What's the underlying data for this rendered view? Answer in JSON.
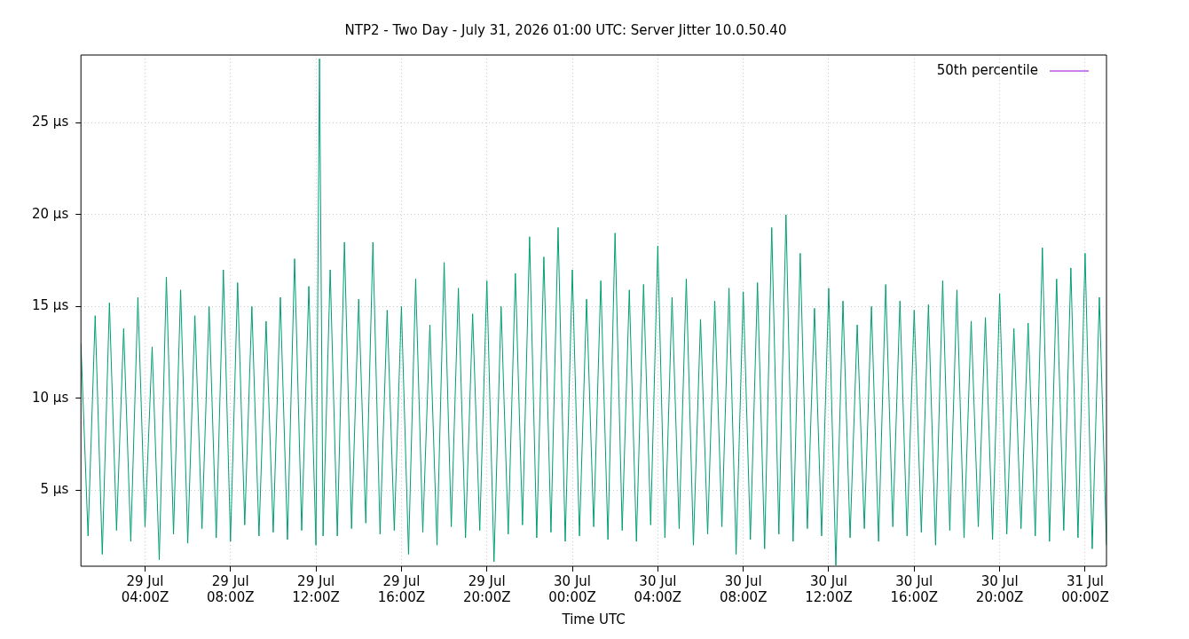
{
  "chart_data": {
    "type": "line",
    "title": "NTP2 - Two Day - July 31, 2026 01:00 UTC: Server Jitter 10.0.50.40",
    "xlabel": "Time UTC",
    "x": [
      "2026-07-29T01:00",
      "2026-07-29T01:20",
      "2026-07-29T01:40",
      "2026-07-29T02:00",
      "2026-07-29T02:20",
      "2026-07-29T02:40",
      "2026-07-29T03:00",
      "2026-07-29T03:20",
      "2026-07-29T03:40",
      "2026-07-29T04:00",
      "2026-07-29T04:20",
      "2026-07-29T04:40",
      "2026-07-29T05:00",
      "2026-07-29T05:20",
      "2026-07-29T05:40",
      "2026-07-29T06:00",
      "2026-07-29T06:20",
      "2026-07-29T06:40",
      "2026-07-29T07:00",
      "2026-07-29T07:20",
      "2026-07-29T07:40",
      "2026-07-29T08:00",
      "2026-07-29T08:20",
      "2026-07-29T08:40",
      "2026-07-29T09:00",
      "2026-07-29T09:20",
      "2026-07-29T09:40",
      "2026-07-29T10:00",
      "2026-07-29T10:20",
      "2026-07-29T10:40",
      "2026-07-29T11:00",
      "2026-07-29T11:20",
      "2026-07-29T11:40",
      "2026-07-29T12:00",
      "2026-07-29T12:10",
      "2026-07-29T12:20",
      "2026-07-29T12:40",
      "2026-07-29T13:00",
      "2026-07-29T13:20",
      "2026-07-29T13:40",
      "2026-07-29T14:00",
      "2026-07-29T14:20",
      "2026-07-29T14:40",
      "2026-07-29T15:00",
      "2026-07-29T15:20",
      "2026-07-29T15:40",
      "2026-07-29T16:00",
      "2026-07-29T16:20",
      "2026-07-29T16:40",
      "2026-07-29T17:00",
      "2026-07-29T17:20",
      "2026-07-29T17:40",
      "2026-07-29T18:00",
      "2026-07-29T18:20",
      "2026-07-29T18:40",
      "2026-07-29T19:00",
      "2026-07-29T19:20",
      "2026-07-29T19:40",
      "2026-07-29T20:00",
      "2026-07-29T20:20",
      "2026-07-29T20:40",
      "2026-07-29T21:00",
      "2026-07-29T21:20",
      "2026-07-29T21:40",
      "2026-07-29T22:00",
      "2026-07-29T22:20",
      "2026-07-29T22:40",
      "2026-07-29T23:00",
      "2026-07-29T23:20",
      "2026-07-29T23:40",
      "2026-07-30T00:00",
      "2026-07-30T00:20",
      "2026-07-30T00:40",
      "2026-07-30T01:00",
      "2026-07-30T01:20",
      "2026-07-30T01:40",
      "2026-07-30T02:00",
      "2026-07-30T02:20",
      "2026-07-30T02:40",
      "2026-07-30T03:00",
      "2026-07-30T03:20",
      "2026-07-30T03:40",
      "2026-07-30T04:00",
      "2026-07-30T04:20",
      "2026-07-30T04:40",
      "2026-07-30T05:00",
      "2026-07-30T05:20",
      "2026-07-30T05:40",
      "2026-07-30T06:00",
      "2026-07-30T06:20",
      "2026-07-30T06:40",
      "2026-07-30T07:00",
      "2026-07-30T07:20",
      "2026-07-30T07:40",
      "2026-07-30T08:00",
      "2026-07-30T08:20",
      "2026-07-30T08:40",
      "2026-07-30T09:00",
      "2026-07-30T09:20",
      "2026-07-30T09:40",
      "2026-07-30T10:00",
      "2026-07-30T10:20",
      "2026-07-30T10:40",
      "2026-07-30T11:00",
      "2026-07-30T11:20",
      "2026-07-30T11:40",
      "2026-07-30T12:00",
      "2026-07-30T12:20",
      "2026-07-30T12:40",
      "2026-07-30T13:00",
      "2026-07-30T13:20",
      "2026-07-30T13:40",
      "2026-07-30T14:00",
      "2026-07-30T14:20",
      "2026-07-30T14:40",
      "2026-07-30T15:00",
      "2026-07-30T15:20",
      "2026-07-30T15:40",
      "2026-07-30T16:00",
      "2026-07-30T16:20",
      "2026-07-30T16:40",
      "2026-07-30T17:00",
      "2026-07-30T17:20",
      "2026-07-30T17:40",
      "2026-07-30T18:00",
      "2026-07-30T18:20",
      "2026-07-30T18:40",
      "2026-07-30T19:00",
      "2026-07-30T19:20",
      "2026-07-30T19:40",
      "2026-07-30T20:00",
      "2026-07-30T20:20",
      "2026-07-30T20:40",
      "2026-07-30T21:00",
      "2026-07-30T21:20",
      "2026-07-30T21:40",
      "2026-07-30T22:00",
      "2026-07-30T22:20",
      "2026-07-30T22:40",
      "2026-07-30T23:00",
      "2026-07-30T23:20",
      "2026-07-30T23:40",
      "2026-07-31T00:00",
      "2026-07-31T00:20",
      "2026-07-31T00:40",
      "2026-07-31T01:00"
    ],
    "series": [
      {
        "name": "50th percentile",
        "color": "#9400d3",
        "values": [
          null,
          null,
          null,
          null,
          null,
          null,
          null,
          null,
          null,
          null,
          null,
          null,
          null,
          null,
          null,
          null,
          null,
          null,
          null,
          null,
          null,
          null,
          null,
          null,
          null,
          null,
          null,
          null,
          null,
          null,
          null,
          null,
          null,
          null,
          null,
          null,
          null,
          null,
          null,
          null,
          null,
          null,
          null,
          null,
          null,
          null,
          null,
          null,
          null,
          null,
          null,
          null,
          null,
          null,
          null,
          null,
          null,
          null,
          null,
          null,
          null,
          null,
          null,
          null,
          null,
          null,
          null,
          null,
          null,
          null,
          null,
          null,
          null,
          null,
          null,
          null,
          null,
          null,
          null,
          null,
          null,
          null,
          null,
          null,
          null,
          null,
          null,
          null,
          null,
          null,
          null,
          null,
          null,
          null,
          null,
          null,
          null,
          null,
          null,
          null,
          null,
          null,
          null,
          null,
          null,
          null,
          null,
          null,
          null,
          null,
          null,
          null,
          null,
          null,
          null,
          null,
          null,
          null,
          null,
          null,
          null,
          null,
          null,
          null,
          null,
          null,
          null,
          null,
          null,
          null,
          null,
          null,
          null,
          null,
          null,
          null,
          null,
          null,
          null,
          null,
          null,
          null,
          null,
          null,
          null,
          null
        ]
      },
      {
        "color": "#009e73",
        "values": [
          13.0,
          2.5,
          14.5,
          1.5,
          15.2,
          2.8,
          13.8,
          2.2,
          15.5,
          3.0,
          12.8,
          1.2,
          16.6,
          2.6,
          15.9,
          2.1,
          14.5,
          2.9,
          15.0,
          2.4,
          17.0,
          2.2,
          16.3,
          3.1,
          15.0,
          2.5,
          14.2,
          2.7,
          15.5,
          2.3,
          17.6,
          2.8,
          16.1,
          2.0,
          28.5,
          2.5,
          17.0,
          2.5,
          18.5,
          2.9,
          15.4,
          3.2,
          18.5,
          2.6,
          14.8,
          2.8,
          15.0,
          1.5,
          16.5,
          2.7,
          14.0,
          2.0,
          17.4,
          3.0,
          16.0,
          2.4,
          14.6,
          2.8,
          16.4,
          1.1,
          15.0,
          2.6,
          16.8,
          3.1,
          18.8,
          2.4,
          17.7,
          2.7,
          19.3,
          2.2,
          17.0,
          2.5,
          15.4,
          3.0,
          16.4,
          2.3,
          19.0,
          2.8,
          15.9,
          2.2,
          16.2,
          3.1,
          18.3,
          2.4,
          15.5,
          2.9,
          16.5,
          2.0,
          14.3,
          2.6,
          15.3,
          3.0,
          16.0,
          1.5,
          15.8,
          2.3,
          16.3,
          1.8,
          19.3,
          2.6,
          20.0,
          2.2,
          17.9,
          2.9,
          14.9,
          2.5,
          16.0,
          0.9,
          15.3,
          2.4,
          14.0,
          2.9,
          15.0,
          2.2,
          16.2,
          3.0,
          15.3,
          2.5,
          14.8,
          2.7,
          15.1,
          2.0,
          16.4,
          2.8,
          15.9,
          2.4,
          14.2,
          3.0,
          14.4,
          2.3,
          15.7,
          2.6,
          13.8,
          2.9,
          14.1,
          2.5,
          18.2,
          2.2,
          16.5,
          2.8,
          17.1,
          2.4,
          17.9,
          1.8,
          15.5,
          2.0
        ]
      }
    ],
    "xlim": [
      "2026-07-29T01:00",
      "2026-07-31T01:00"
    ],
    "xticks": [
      {
        "value": "2026-07-29T04:00",
        "label": "29 Jul\n04:00Z"
      },
      {
        "value": "2026-07-29T08:00",
        "label": "29 Jul\n08:00Z"
      },
      {
        "value": "2026-07-29T12:00",
        "label": "29 Jul\n12:00Z"
      },
      {
        "value": "2026-07-29T16:00",
        "label": "29 Jul\n16:00Z"
      },
      {
        "value": "2026-07-29T20:00",
        "label": "29 Jul\n20:00Z"
      },
      {
        "value": "2026-07-30T00:00",
        "label": "30 Jul\n00:00Z"
      },
      {
        "value": "2026-07-30T04:00",
        "label": "30 Jul\n04:00Z"
      },
      {
        "value": "2026-07-30T08:00",
        "label": "30 Jul\n08:00Z"
      },
      {
        "value": "2026-07-30T12:00",
        "label": "30 Jul\n12:00Z"
      },
      {
        "value": "2026-07-30T16:00",
        "label": "30 Jul\n16:00Z"
      },
      {
        "value": "2026-07-30T20:00",
        "label": "30 Jul\n20:00Z"
      },
      {
        "value": "2026-07-31T00:00",
        "label": "31 Jul\n00:00Z"
      }
    ],
    "ylim": [
      0.85,
      28.7
    ],
    "yticks": [
      {
        "value": 5,
        "label": "5 µs"
      },
      {
        "value": 10,
        "label": "10 µs"
      },
      {
        "value": 15,
        "label": "15 µs"
      },
      {
        "value": 20,
        "label": "20 µs"
      },
      {
        "value": 25,
        "label": "25 µs"
      }
    ],
    "grid": true,
    "legend": "top right",
    "marker": "none",
    "line_style": "solid"
  }
}
